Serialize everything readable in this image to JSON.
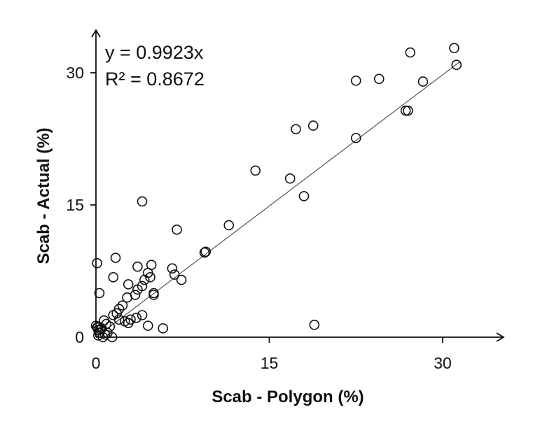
{
  "chart_data": {
    "type": "scatter",
    "xlabel": "Scab - Polygon (%)",
    "ylabel": "Scab - Actual (%)",
    "xlim": [
      0,
      35
    ],
    "ylim": [
      0,
      35
    ],
    "xticks": [
      0,
      15,
      30
    ],
    "yticks": [
      0,
      15,
      30
    ],
    "xtick_labels": [
      "0",
      "15",
      "30"
    ],
    "ytick_labels": [
      "0",
      "15",
      "30"
    ],
    "annotations": [
      "y = 0.9923x",
      "R² = 0.8672"
    ],
    "fit_line": {
      "slope": 0.9923,
      "intercept": 0,
      "x_range": [
        0,
        31.5
      ]
    },
    "points": [
      [
        0.1,
        8.4
      ],
      [
        0.3,
        5.0
      ],
      [
        1.7,
        9.0
      ],
      [
        1.5,
        6.8
      ],
      [
        4.0,
        15.4
      ],
      [
        7.0,
        12.2
      ],
      [
        11.5,
        12.7
      ],
      [
        9.5,
        9.7
      ],
      [
        9.4,
        9.6
      ],
      [
        6.6,
        7.8
      ],
      [
        6.8,
        7.1
      ],
      [
        7.4,
        6.5
      ],
      [
        3.6,
        8.0
      ],
      [
        4.8,
        8.2
      ],
      [
        4.5,
        7.3
      ],
      [
        4.7,
        6.8
      ],
      [
        4.2,
        6.5
      ],
      [
        4.0,
        5.8
      ],
      [
        3.6,
        5.4
      ],
      [
        3.4,
        4.8
      ],
      [
        2.8,
        6.0
      ],
      [
        2.7,
        4.5
      ],
      [
        2.3,
        3.6
      ],
      [
        2.0,
        3.2
      ],
      [
        1.8,
        2.7
      ],
      [
        1.5,
        2.5
      ],
      [
        2.0,
        2.0
      ],
      [
        2.5,
        1.8
      ],
      [
        3.0,
        2.0
      ],
      [
        3.5,
        2.2
      ],
      [
        4.0,
        2.5
      ],
      [
        5.0,
        5.0
      ],
      [
        5.0,
        4.8
      ],
      [
        4.5,
        1.3
      ],
      [
        5.8,
        1.0
      ],
      [
        2.8,
        1.6
      ],
      [
        1.2,
        1.2
      ],
      [
        0.9,
        1.5
      ],
      [
        0.7,
        1.9
      ],
      [
        0.5,
        1.0
      ],
      [
        0.3,
        0.5
      ],
      [
        0.2,
        0.8
      ],
      [
        0.1,
        1.1
      ],
      [
        0.0,
        1.3
      ],
      [
        0.2,
        0.2
      ],
      [
        0.6,
        0.0
      ],
      [
        0.8,
        0.3
      ],
      [
        1.0,
        0.5
      ],
      [
        1.4,
        0.0
      ],
      [
        0.4,
        0.9
      ],
      [
        0.2,
        1.2
      ],
      [
        13.8,
        18.9
      ],
      [
        16.8,
        18.0
      ],
      [
        18.0,
        16.0
      ],
      [
        17.3,
        23.6
      ],
      [
        18.8,
        24.0
      ],
      [
        18.9,
        1.4
      ],
      [
        22.5,
        22.6
      ],
      [
        22.5,
        29.1
      ],
      [
        24.5,
        29.3
      ],
      [
        26.8,
        25.7
      ],
      [
        27.0,
        25.7
      ],
      [
        27.2,
        32.3
      ],
      [
        28.3,
        29.0
      ],
      [
        31.0,
        32.8
      ],
      [
        31.2,
        30.9
      ]
    ]
  }
}
